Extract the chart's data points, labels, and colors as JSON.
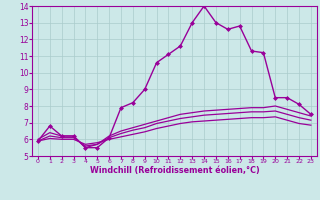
{
  "background_color": "#cce8e8",
  "grid_color": "#aacccc",
  "line_color": "#990099",
  "marker_color": "#990099",
  "xlabel": "Windchill (Refroidissement éolien,°C)",
  "xlim": [
    -0.5,
    23.5
  ],
  "ylim": [
    5,
    14
  ],
  "xticks": [
    0,
    1,
    2,
    3,
    4,
    5,
    6,
    7,
    8,
    9,
    10,
    11,
    12,
    13,
    14,
    15,
    16,
    17,
    18,
    19,
    20,
    21,
    22,
    23
  ],
  "yticks": [
    5,
    6,
    7,
    8,
    9,
    10,
    11,
    12,
    13,
    14
  ],
  "series": [
    {
      "x": [
        0,
        1,
        2,
        3,
        4,
        5,
        6,
        7,
        8,
        9,
        10,
        11,
        12,
        13,
        14,
        15,
        16,
        17,
        18,
        19,
        20,
        21,
        22,
        23
      ],
      "y": [
        5.9,
        6.8,
        6.2,
        6.2,
        5.5,
        5.5,
        6.1,
        7.9,
        8.2,
        9.0,
        10.6,
        11.1,
        11.6,
        13.0,
        14.0,
        13.0,
        12.6,
        12.8,
        11.3,
        11.2,
        8.5,
        8.5,
        8.1,
        7.5
      ],
      "has_markers": true,
      "linewidth": 1.0
    },
    {
      "x": [
        0,
        1,
        2,
        3,
        4,
        5,
        6,
        7,
        8,
        9,
        10,
        11,
        12,
        13,
        14,
        15,
        16,
        17,
        18,
        19,
        20,
        21,
        22,
        23
      ],
      "y": [
        6.0,
        6.4,
        6.2,
        6.2,
        5.5,
        5.7,
        6.2,
        6.5,
        6.7,
        6.9,
        7.1,
        7.3,
        7.5,
        7.6,
        7.7,
        7.75,
        7.8,
        7.85,
        7.9,
        7.9,
        8.0,
        7.8,
        7.6,
        7.4
      ],
      "has_markers": false,
      "linewidth": 0.9
    },
    {
      "x": [
        0,
        1,
        2,
        3,
        4,
        5,
        6,
        7,
        8,
        9,
        10,
        11,
        12,
        13,
        14,
        15,
        16,
        17,
        18,
        19,
        20,
        21,
        22,
        23
      ],
      "y": [
        5.9,
        6.2,
        6.1,
        6.1,
        5.6,
        5.7,
        6.1,
        6.35,
        6.55,
        6.7,
        6.95,
        7.1,
        7.25,
        7.35,
        7.45,
        7.5,
        7.55,
        7.6,
        7.65,
        7.65,
        7.7,
        7.5,
        7.3,
        7.15
      ],
      "has_markers": false,
      "linewidth": 0.9
    },
    {
      "x": [
        0,
        1,
        2,
        3,
        4,
        5,
        6,
        7,
        8,
        9,
        10,
        11,
        12,
        13,
        14,
        15,
        16,
        17,
        18,
        19,
        20,
        21,
        22,
        23
      ],
      "y": [
        5.9,
        6.05,
        6.0,
        6.0,
        5.7,
        5.8,
        6.0,
        6.15,
        6.3,
        6.45,
        6.65,
        6.8,
        6.95,
        7.05,
        7.1,
        7.15,
        7.2,
        7.25,
        7.3,
        7.3,
        7.35,
        7.15,
        6.95,
        6.85
      ],
      "has_markers": false,
      "linewidth": 0.9
    }
  ],
  "tick_color": "#990099",
  "font_color": "#990099",
  "axis_color": "#990099",
  "xlabel_fontsize": 5.8,
  "xlabel_fontweight": "bold",
  "xtick_fontsize": 4.5,
  "ytick_fontsize": 5.5
}
